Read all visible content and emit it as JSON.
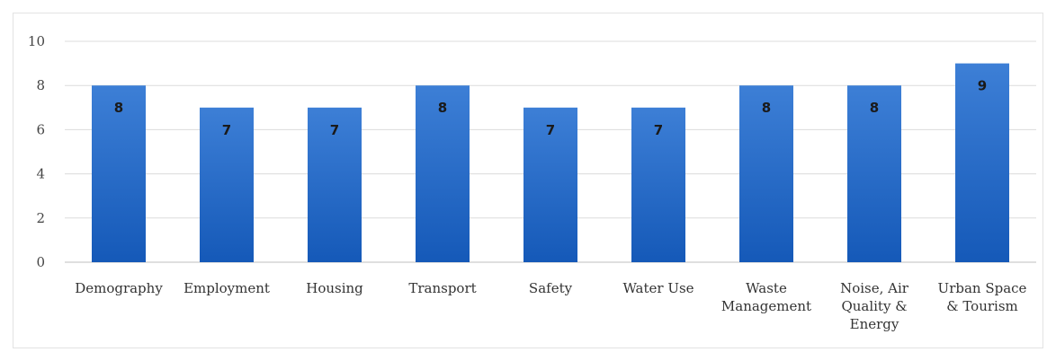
{
  "chart_data": {
    "type": "bar",
    "categories": [
      "Demography",
      "Employment",
      "Housing",
      "Transport",
      "Safety",
      "Water Use",
      "Waste Management",
      "Noise, Air Quality & Energy",
      "Urban Space & Tourism"
    ],
    "category_lines": [
      [
        "Demography"
      ],
      [
        "Employment"
      ],
      [
        "Housing"
      ],
      [
        "Transport"
      ],
      [
        "Safety"
      ],
      [
        "Water Use"
      ],
      [
        "Waste",
        "Management"
      ],
      [
        "Noise, Air",
        "Quality &",
        "Energy"
      ],
      [
        "Urban Space",
        "& Tourism"
      ]
    ],
    "values": [
      8,
      7,
      7,
      8,
      7,
      7,
      8,
      8,
      9
    ],
    "data_labels": [
      "8",
      "7",
      "7",
      "8",
      "7",
      "7",
      "8",
      "8",
      "9"
    ],
    "yticks": [
      0,
      2,
      4,
      6,
      8,
      10
    ],
    "ylim": [
      0,
      10
    ],
    "grid": true,
    "legend": "none",
    "title": "",
    "xlabel": "",
    "ylabel": "",
    "colors": {
      "bar_top": "#3d7fd6",
      "bar_bottom": "#1559b8"
    }
  }
}
